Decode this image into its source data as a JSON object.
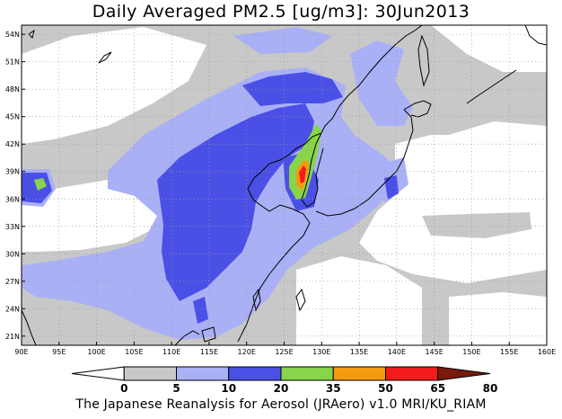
{
  "title": "Daily Averaged PM2.5 [ug/m3]: 30Jun2013",
  "footer": "The Japanese Reanalysis for Aerosol (JRAero) v1.0 MRI/KU_RIAM",
  "map": {
    "lon_range": [
      90,
      160
    ],
    "lat_range": [
      20,
      55
    ],
    "lon_ticks": [
      "90E",
      "95E",
      "100E",
      "105E",
      "110E",
      "115E",
      "120E",
      "125E",
      "130E",
      "135E",
      "140E",
      "145E",
      "150E",
      "155E",
      "160E"
    ],
    "lat_ticks": [
      "54N",
      "51N",
      "48N",
      "45N",
      "42N",
      "39N",
      "36N",
      "33N",
      "30N",
      "27N",
      "24N",
      "21N"
    ],
    "grid": true
  },
  "colorbar": {
    "levels": [
      "0",
      "5",
      "10",
      "20",
      "35",
      "50",
      "65",
      "80"
    ],
    "colors": [
      "#ffffff",
      "#c8c8c8",
      "#aab0f5",
      "#4a50e6",
      "#88d44a",
      "#f59a10",
      "#f21a1a",
      "#7a1a0a"
    ]
  }
}
